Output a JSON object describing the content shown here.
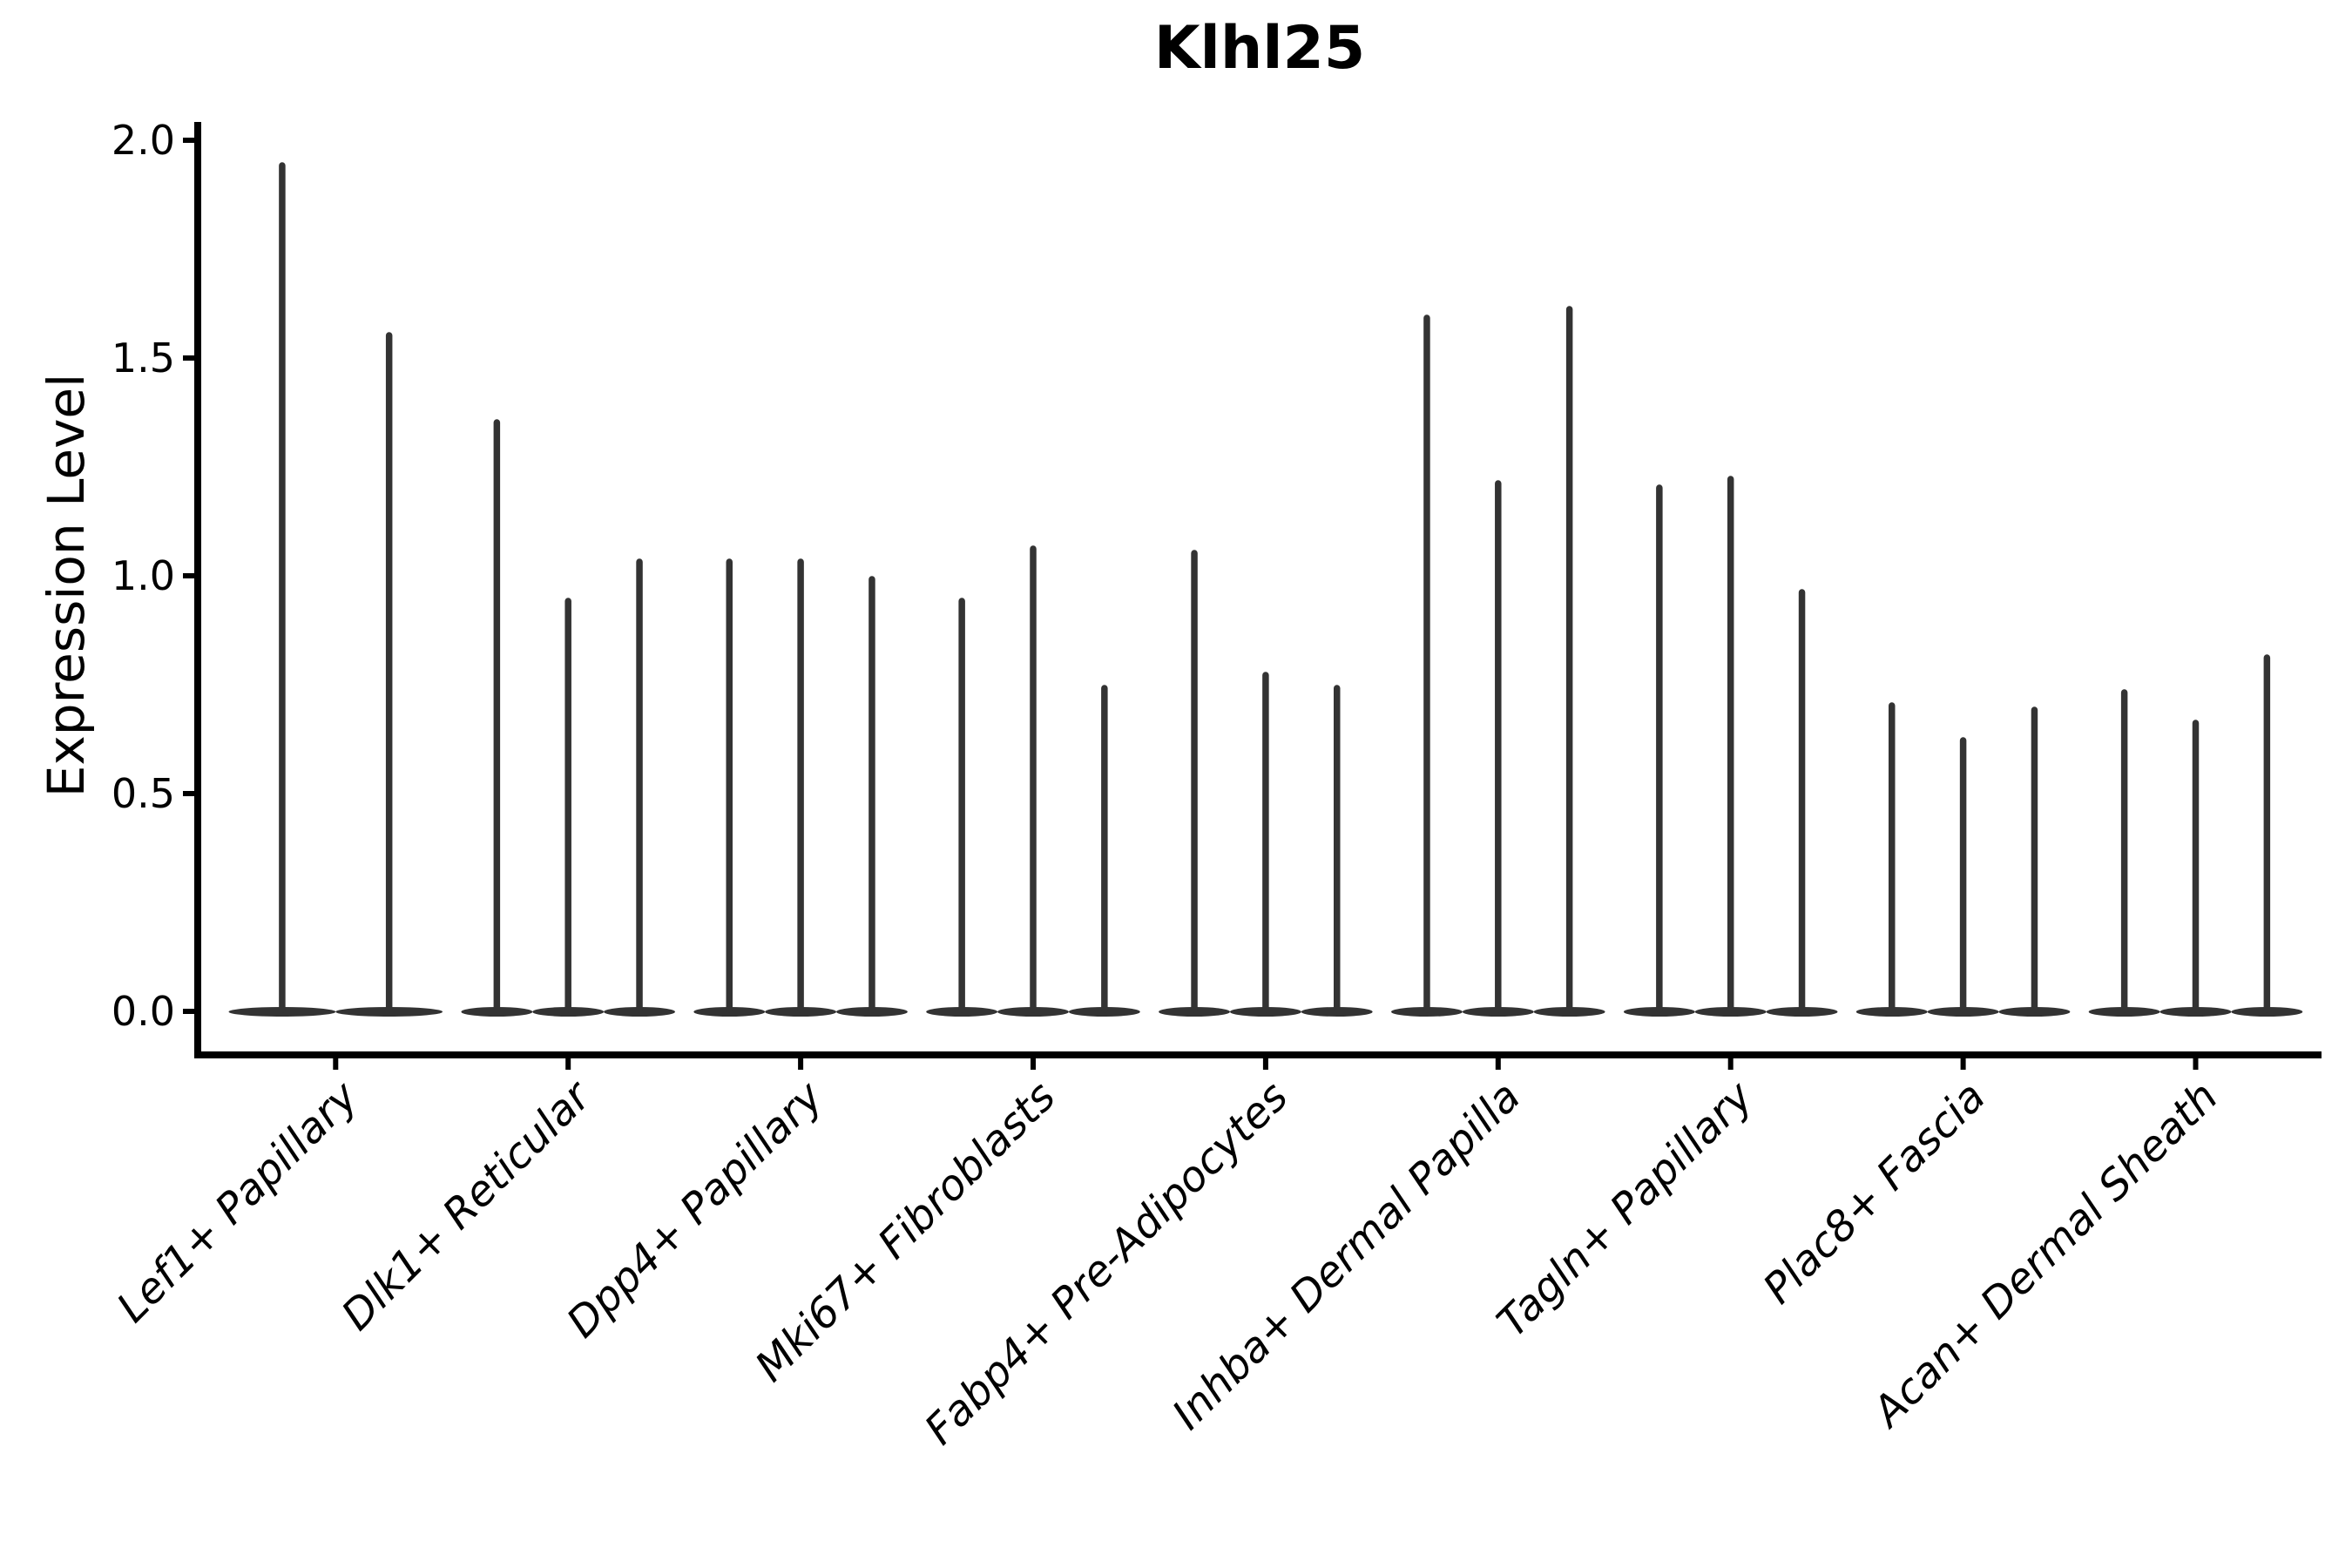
{
  "chart_data": {
    "type": "violin",
    "title": "Klhl25",
    "ylabel": "Expression Level",
    "xlabel": "",
    "ylim": [
      0,
      2.05
    ],
    "yticks": [
      0.0,
      0.5,
      1.0,
      1.5,
      2.0
    ],
    "ytick_labels": [
      "0.0",
      "0.5",
      "1.0",
      "1.5",
      "2.0"
    ],
    "grid": "off",
    "legend": "none",
    "categories": [
      "Lef1+ Papillary",
      "Dlk1+ Reticular",
      "Dpp4+ Papillary",
      "Mki67+ Fibroblasts",
      "Fabp4+ Pre-Adipocytes",
      "Inhba+ Dermal Papilla",
      "Tagln+ Papillary",
      "Plac8+ Fascia",
      "Acan+ Dermal Sheath"
    ],
    "series": [
      {
        "category": "Lef1+ Papillary",
        "violin_peak_expression": [
          1.95,
          1.56
        ]
      },
      {
        "category": "Dlk1+ Reticular",
        "violin_peak_expression": [
          1.36,
          0.95,
          1.04
        ]
      },
      {
        "category": "Dpp4+ Papillary",
        "violin_peak_expression": [
          1.04,
          1.04,
          1.0
        ]
      },
      {
        "category": "Mki67+ Fibroblasts",
        "violin_peak_expression": [
          0.95,
          1.07,
          0.75
        ]
      },
      {
        "category": "Fabp4+ Pre-Adipocytes",
        "violin_peak_expression": [
          1.06,
          0.78,
          0.75
        ]
      },
      {
        "category": "Inhba+ Dermal Papilla",
        "violin_peak_expression": [
          1.6,
          1.22,
          1.62
        ]
      },
      {
        "category": "Tagln+ Papillary",
        "violin_peak_expression": [
          1.21,
          1.23,
          0.97
        ]
      },
      {
        "category": "Plac8+ Fascia",
        "violin_peak_expression": [
          0.71,
          0.63,
          0.7
        ]
      },
      {
        "category": "Acan+ Dermal Sheath",
        "violin_peak_expression": [
          0.74,
          0.67,
          0.82
        ]
      }
    ]
  },
  "colors": {
    "violin_fill": "#333333",
    "axis": "#000000",
    "text": "#000000",
    "background": "#ffffff"
  }
}
